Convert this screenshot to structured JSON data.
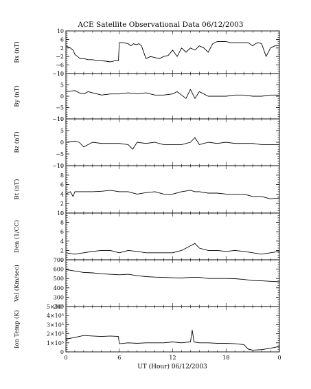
{
  "chart_data": {
    "type": "line",
    "title": "ACE Satellite Observational Data   06/12/2003",
    "xlabel": "UT (Hour)   06/12/2003",
    "xlim": [
      0,
      24
    ],
    "x_ticks": [
      "0",
      "6",
      "12",
      "18",
      "0"
    ],
    "panels": [
      {
        "ylabel": "Bx (nT)",
        "ylim": [
          -10,
          10
        ],
        "ytick_values": [
          10,
          6,
          2,
          -2,
          -6,
          -10
        ],
        "ytick_labels": [
          "10",
          "6",
          "2",
          "−2",
          "−6",
          "−10"
        ],
        "series": [
          {
            "x": [
              0,
              0.5,
              0.8,
              1.0,
              1.3,
              1.6,
              2.0,
              2.5,
              3,
              3.5,
              4,
              4.5,
              5,
              5.5,
              5.9,
              6.0,
              6.5,
              7,
              7.3,
              7.6,
              7.9,
              8.2,
              8.5,
              9,
              9.5,
              10,
              10.5,
              11,
              11.5,
              12,
              12.5,
              13,
              13.5,
              14,
              14.5,
              15,
              15.5,
              16,
              16.5,
              17,
              17.5,
              18,
              18.5,
              19,
              19.5,
              20,
              20.5,
              21,
              21.3,
              21.6,
              22,
              22.5,
              23,
              23.5,
              24
            ],
            "y": [
              3,
              2,
              1,
              -1,
              -2,
              -3,
              -3,
              -3.5,
              -3.5,
              -4,
              -4,
              -4.2,
              -4.5,
              -4,
              -4,
              4.5,
              4.5,
              4,
              3,
              4,
              3.5,
              4,
              3,
              -3,
              -2,
              -2.5,
              -3,
              -2,
              -1.5,
              1,
              -2,
              2,
              0,
              2,
              1,
              3,
              2,
              0,
              4,
              5,
              5,
              5,
              4.5,
              4.5,
              4.5,
              4.5,
              4.5,
              3,
              4,
              4.5,
              4,
              -2,
              2,
              3,
              3
            ]
          }
        ]
      },
      {
        "ylabel": "By (nT)",
        "ylim": [
          -10,
          10
        ],
        "ytick_values": [
          10,
          5,
          0,
          -5,
          -10
        ],
        "ytick_labels": [
          "10",
          "5",
          "0",
          "−5",
          "−10"
        ],
        "series": [
          {
            "x": [
              0,
              1,
              1.5,
              2,
              2.5,
              3,
              4,
              5,
              6,
              7,
              8,
              9,
              10,
              11,
              12,
              12.5,
              13,
              13.5,
              14,
              14.5,
              15,
              15.5,
              16,
              17,
              18,
              19,
              20,
              21,
              22,
              23,
              24
            ],
            "y": [
              2,
              2.5,
              1.5,
              1,
              2,
              1.5,
              0.5,
              1,
              1,
              1.5,
              1,
              1.5,
              0.5,
              0.5,
              1,
              2,
              0.5,
              -1,
              3,
              -1,
              2,
              1,
              0,
              0,
              0,
              0.5,
              0.5,
              0,
              0,
              0.5,
              0.5
            ]
          }
        ]
      },
      {
        "ylabel": "Bz (nT)",
        "ylim": [
          -10,
          10
        ],
        "ytick_values": [
          10,
          5,
          0,
          -5,
          -10
        ],
        "ytick_labels": [
          "10",
          "5",
          "0",
          "−5",
          "−10"
        ],
        "series": [
          {
            "x": [
              0,
              1,
              1.5,
              2,
              3,
              4,
              5,
              6,
              7,
              7.5,
              8,
              9,
              10,
              11,
              12,
              13,
              14,
              14.5,
              15,
              16,
              17,
              18,
              19,
              20,
              21,
              22,
              23,
              24
            ],
            "y": [
              0,
              0.5,
              0,
              -2,
              0,
              -0.5,
              -0.5,
              -0.5,
              -1,
              -3,
              0,
              -0.5,
              0,
              -1,
              -1,
              -1,
              0,
              2,
              -1,
              0,
              -0.5,
              0,
              -0.5,
              -0.5,
              -0.5,
              -1,
              -1,
              -1
            ]
          }
        ]
      },
      {
        "ylabel": "Bt (nT)",
        "ylim": [
          0,
          10
        ],
        "ytick_values": [
          10,
          8,
          6,
          4,
          2,
          0
        ],
        "ytick_labels": [
          "10",
          "8",
          "6",
          "4",
          "2",
          "0"
        ],
        "series": [
          {
            "x": [
              0,
              0.5,
              0.8,
              1,
              1.5,
              2,
              3,
              4,
              5,
              6,
              7,
              8,
              9,
              10,
              11,
              12,
              13,
              14,
              14.5,
              15,
              16,
              17,
              18,
              19,
              20,
              21,
              22,
              23,
              24
            ],
            "y": [
              4,
              4.5,
              3.5,
              4.5,
              4.5,
              4.5,
              4.5,
              4.6,
              4.8,
              4.5,
              4.5,
              4,
              4.3,
              4.5,
              4,
              4,
              4.5,
              4.8,
              4.5,
              4.5,
              4.2,
              4.2,
              4,
              4,
              4,
              3.5,
              3.5,
              3,
              3.2
            ]
          }
        ]
      },
      {
        "ylabel": "Den (1/CC)",
        "ylim": [
          0,
          10
        ],
        "ytick_values": [
          10,
          8,
          6,
          4,
          2,
          0
        ],
        "ytick_labels": [
          "10",
          "8",
          "6",
          "4",
          "2",
          "0"
        ],
        "series": [
          {
            "x": [
              0,
              1,
              2,
              3,
              4,
              5,
              6,
              7,
              8,
              9,
              10,
              11,
              12,
              13,
              14,
              14.5,
              15,
              16,
              17,
              18,
              19,
              20,
              21,
              22,
              23,
              24
            ],
            "y": [
              1.5,
              1.2,
              1.5,
              1.8,
              2,
              2,
              1.5,
              2,
              1.8,
              1.5,
              1.5,
              1.5,
              1.5,
              2,
              3,
              3.5,
              2.5,
              2,
              2,
              1.8,
              2,
              1.8,
              1.5,
              1.2,
              1.5,
              1.8
            ]
          }
        ]
      },
      {
        "ylabel": "Vel (Km/sec)",
        "ylim": [
          200,
          700
        ],
        "ytick_values": [
          700,
          600,
          500,
          400,
          300,
          200
        ],
        "ytick_labels": [
          "700",
          "600",
          "500",
          "400",
          "300",
          "200"
        ],
        "series": [
          {
            "x": [
              0,
              1,
              2,
              3,
              4,
              5,
              6,
              7,
              8,
              9,
              10,
              11,
              12,
              13,
              14,
              15,
              16,
              17,
              18,
              19,
              20,
              21,
              22,
              23,
              24
            ],
            "y": [
              595,
              580,
              565,
              560,
              550,
              545,
              540,
              545,
              530,
              520,
              515,
              512,
              508,
              505,
              512,
              512,
              500,
              500,
              500,
              498,
              490,
              478,
              475,
              470,
              465
            ]
          }
        ]
      },
      {
        "ylabel": "Ion Temp (K)",
        "ylim": [
          0,
          500000
        ],
        "ytick_values": [
          500000,
          400000,
          300000,
          200000,
          100000,
          0
        ],
        "ytick_labels": [
          "5×10⁵",
          "4×10⁵",
          "3×10⁵",
          "2×10⁵",
          "1×10⁵",
          "0"
        ],
        "series": [
          {
            "x": [
              0,
              1,
              2,
              3,
              4,
              5,
              5.9,
              6,
              7,
              8,
              9,
              10,
              11,
              12,
              13,
              13.5,
              14,
              14.2,
              14.4,
              15,
              16,
              17,
              18,
              19,
              20,
              20.5,
              21,
              22,
              23,
              24
            ],
            "y": [
              140000,
              160000,
              180000,
              175000,
              170000,
              175000,
              170000,
              90000,
              100000,
              95000,
              100000,
              100000,
              100000,
              110000,
              100000,
              105000,
              110000,
              240000,
              110000,
              100000,
              100000,
              95000,
              95000,
              90000,
              80000,
              30000,
              20000,
              25000,
              40000,
              60000
            ]
          }
        ]
      }
    ]
  }
}
